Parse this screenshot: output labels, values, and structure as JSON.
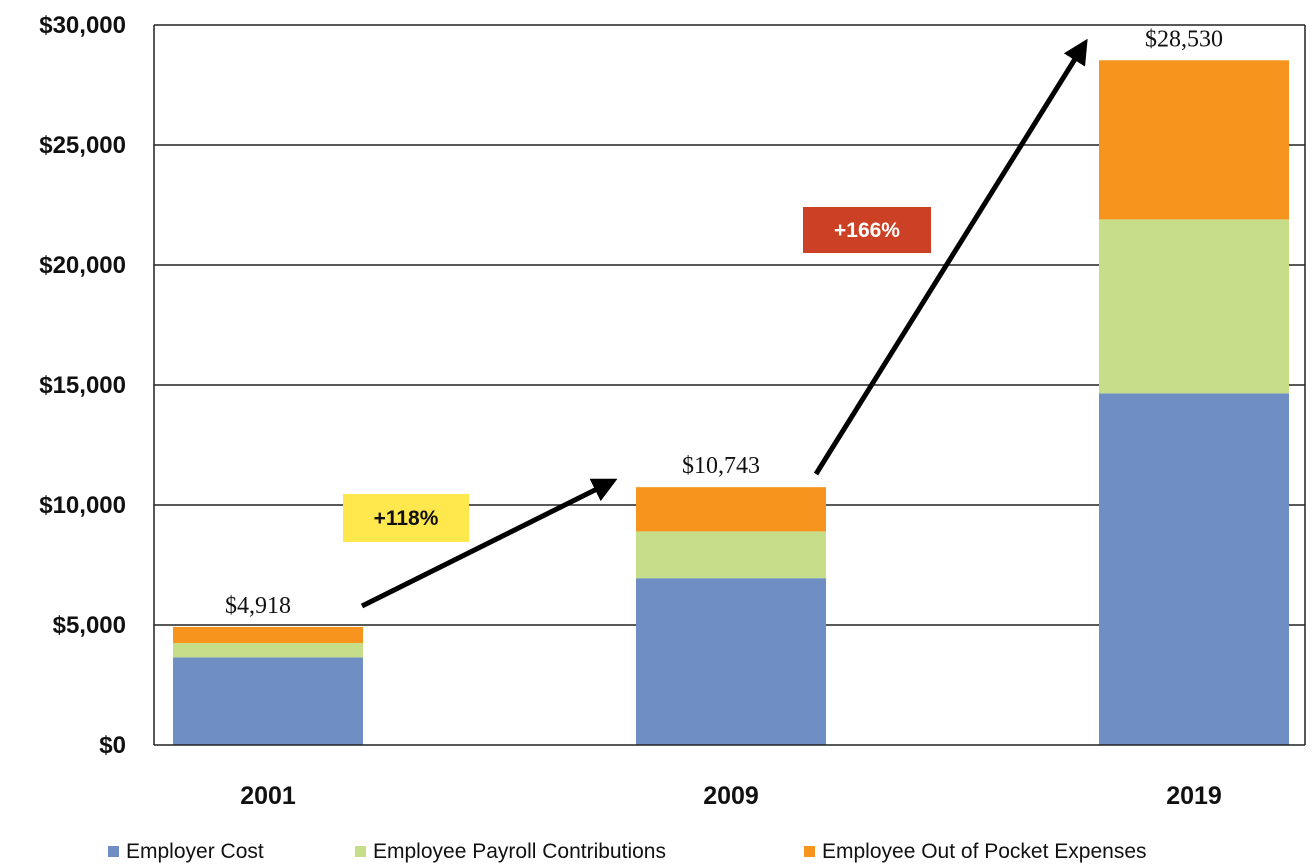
{
  "chart_data": {
    "type": "bar",
    "stacked": true,
    "categories": [
      "2001",
      "2009",
      "2019"
    ],
    "series": [
      {
        "name": "Employer Cost",
        "values": [
          3650,
          6950,
          14650
        ],
        "color": "#6f8fc4"
      },
      {
        "name": "Employee Payroll Contributions",
        "values": [
          600,
          1950,
          7250
        ],
        "color": "#c6de8a"
      },
      {
        "name": "Employee Out of Pocket Expenses",
        "values": [
          668,
          1843,
          6630
        ],
        "color": "#f7941d"
      }
    ],
    "totals": [
      4918,
      10743,
      28530
    ],
    "total_labels": [
      "$4,918",
      "$10,743",
      "$28,530"
    ],
    "ylim": [
      0,
      30000
    ],
    "yticks": [
      0,
      5000,
      10000,
      15000,
      20000,
      25000,
      30000
    ],
    "ytick_labels": [
      "$0",
      "$5,000",
      "$10,000",
      "$15,000",
      "$20,000",
      "$25,000",
      "$30,000"
    ],
    "grid": true,
    "legend_position": "bottom",
    "annotations": [
      {
        "text": "+118%",
        "from": "2001",
        "to": "2009",
        "bg_color": "#ffe84d",
        "text_color": "#111111"
      },
      {
        "text": "+166%",
        "from": "2009",
        "to": "2019",
        "bg_color": "#cc4125",
        "text_color": "#ffffff"
      }
    ],
    "title": "",
    "xlabel": "",
    "ylabel": ""
  }
}
